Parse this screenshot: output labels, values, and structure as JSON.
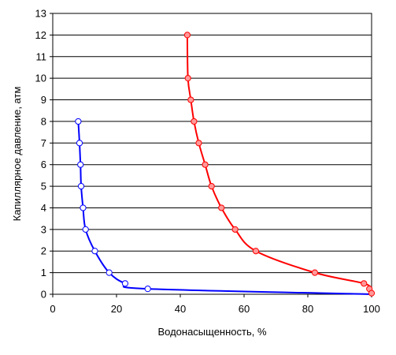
{
  "chart_data": {
    "type": "scatter",
    "title": "",
    "xlabel": "Водонасыщенность, %",
    "ylabel": "Капиллярное давление, атм",
    "xlim": [
      0,
      100
    ],
    "ylim": [
      0,
      13
    ],
    "x_ticks": [
      "0",
      "20",
      "40",
      "60",
      "80",
      "100"
    ],
    "y_ticks": [
      "0",
      "1",
      "2",
      "3",
      "4",
      "5",
      "6",
      "7",
      "8",
      "9",
      "10",
      "11",
      "12",
      "13"
    ],
    "grid": "horizontal",
    "legend": "none",
    "series": [
      {
        "color": "#0000ff",
        "marker_fill": "#ffffff",
        "points": [
          [
            8.0,
            8.0
          ],
          [
            8.4,
            7.0
          ],
          [
            8.7,
            6.0
          ],
          [
            8.9,
            5.0
          ],
          [
            9.5,
            4.0
          ],
          [
            10.3,
            3.0
          ],
          [
            13.2,
            2.0
          ],
          [
            17.7,
            1.0
          ],
          [
            22.7,
            0.5
          ],
          [
            29.8,
            0.25
          ],
          [
            100.0,
            0.0
          ]
        ],
        "markers_shown": 10
      },
      {
        "color": "#ff0000",
        "marker_fill": "#ff9999",
        "points": [
          [
            42.2,
            12.0
          ],
          [
            42.4,
            10.0
          ],
          [
            43.3,
            9.0
          ],
          [
            44.3,
            8.0
          ],
          [
            45.8,
            7.0
          ],
          [
            47.8,
            6.0
          ],
          [
            49.8,
            5.0
          ],
          [
            52.9,
            4.0
          ],
          [
            57.2,
            3.0
          ],
          [
            63.7,
            2.0
          ],
          [
            82.2,
            1.0
          ],
          [
            97.6,
            0.5
          ],
          [
            99.3,
            0.25
          ],
          [
            100.0,
            0.05
          ]
        ],
        "markers_shown": 14
      }
    ]
  }
}
